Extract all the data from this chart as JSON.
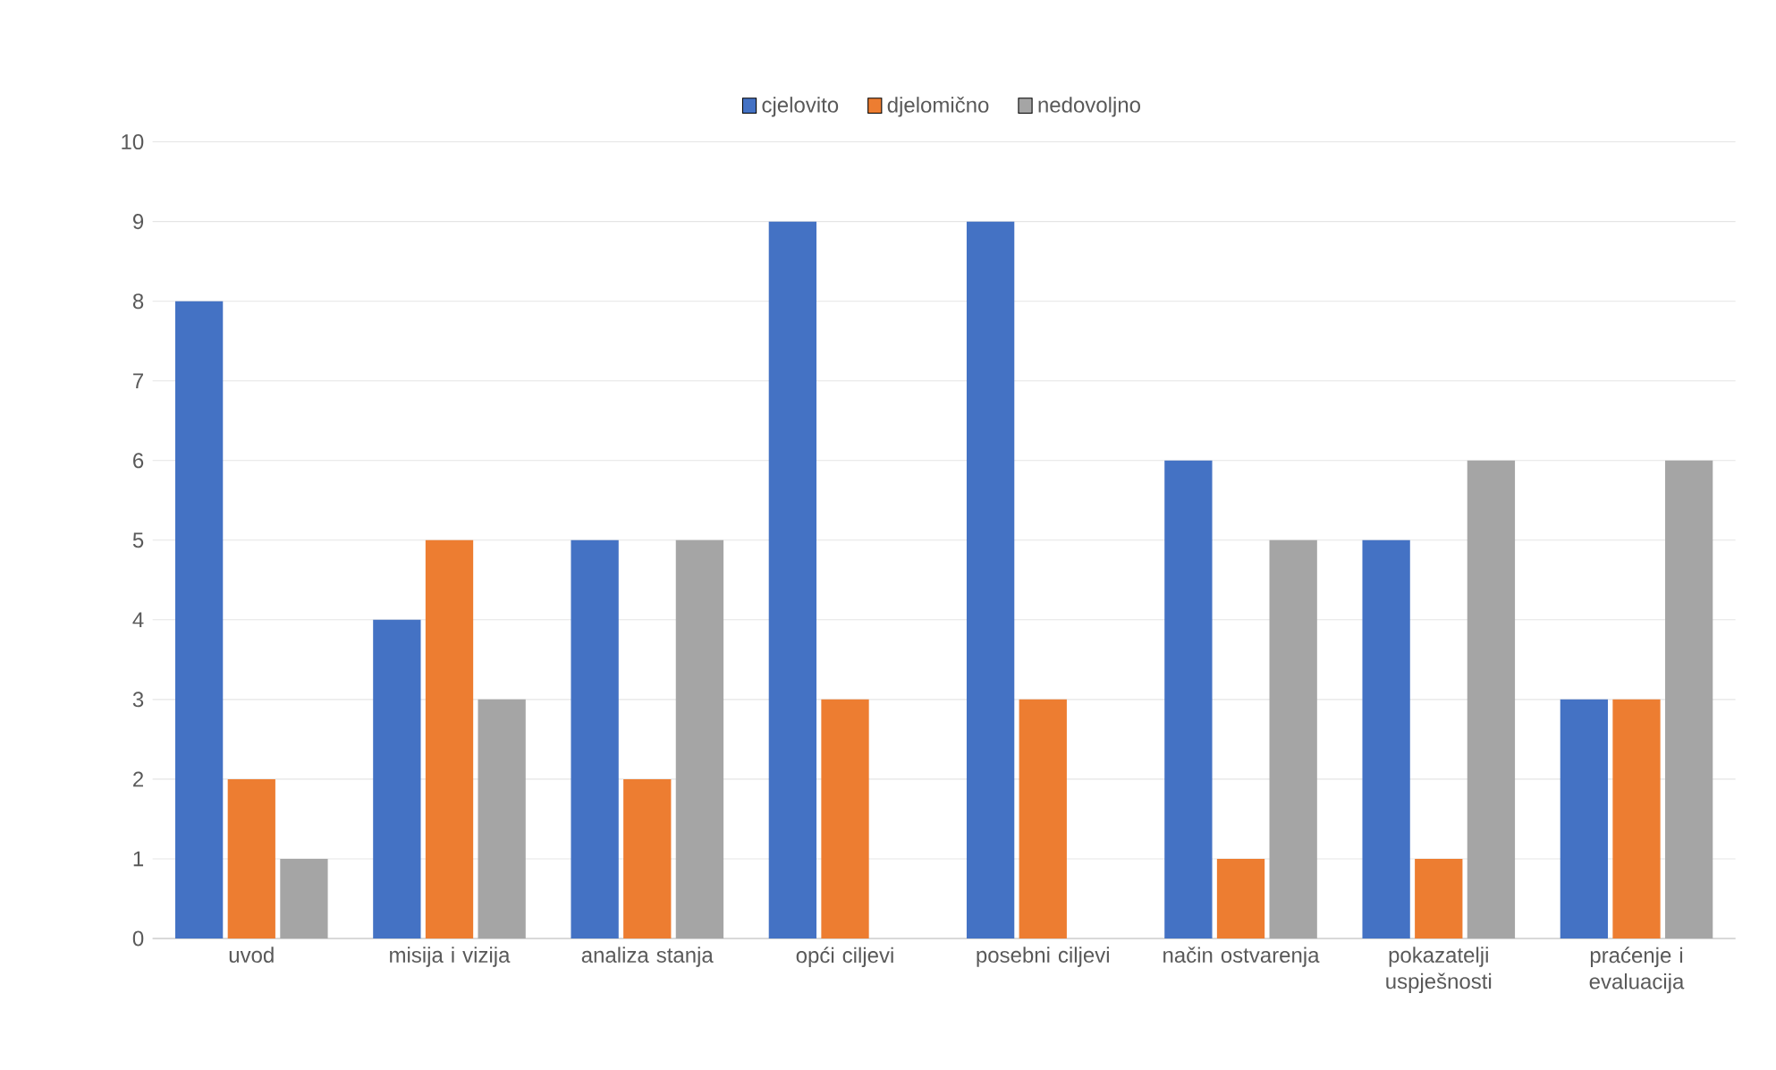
{
  "chart_data": {
    "type": "bar",
    "categories": [
      "uvod",
      "misija i vizija",
      "analiza stanja",
      "opći ciljevi",
      "posebni ciljevi",
      "način ostvarenja",
      "pokazatelji uspješnosti",
      "praćenje i evaluacija"
    ],
    "series": [
      {
        "name": "cjelovito",
        "color": "#4472c4",
        "values": [
          8,
          4,
          5,
          9,
          9,
          6,
          5,
          3
        ]
      },
      {
        "name": "djelomično",
        "color": "#ed7d31",
        "values": [
          2,
          5,
          2,
          3,
          3,
          1,
          1,
          3
        ]
      },
      {
        "name": "nedovoljno",
        "color": "#a5a5a5",
        "values": [
          1,
          3,
          5,
          0,
          0,
          5,
          6,
          6
        ]
      }
    ],
    "ylim": [
      0,
      10
    ],
    "yticks": [
      0,
      1,
      2,
      3,
      4,
      5,
      6,
      7,
      8,
      9,
      10
    ],
    "grid": "y",
    "legend": "top"
  }
}
